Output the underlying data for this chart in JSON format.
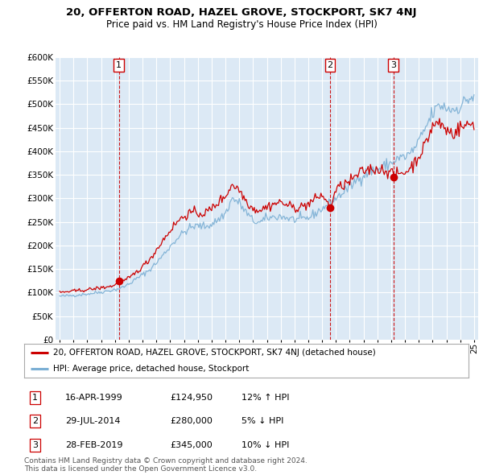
{
  "title1": "20, OFFERTON ROAD, HAZEL GROVE, STOCKPORT, SK7 4NJ",
  "title2": "Price paid vs. HM Land Registry's House Price Index (HPI)",
  "ylabel_ticks": [
    "£0",
    "£50K",
    "£100K",
    "£150K",
    "£200K",
    "£250K",
    "£300K",
    "£350K",
    "£400K",
    "£450K",
    "£500K",
    "£550K",
    "£600K"
  ],
  "ytick_values": [
    0,
    50000,
    100000,
    150000,
    200000,
    250000,
    300000,
    350000,
    400000,
    450000,
    500000,
    550000,
    600000
  ],
  "sale_dates": [
    1999.29,
    2014.57,
    2019.16
  ],
  "sale_prices": [
    124950,
    280000,
    345000
  ],
  "sale_labels": [
    "1",
    "2",
    "3"
  ],
  "legend_house": "20, OFFERTON ROAD, HAZEL GROVE, STOCKPORT, SK7 4NJ (detached house)",
  "legend_hpi": "HPI: Average price, detached house, Stockport",
  "table_rows": [
    [
      "1",
      "16-APR-1999",
      "£124,950",
      "12% ↑ HPI"
    ],
    [
      "2",
      "29-JUL-2014",
      "£280,000",
      "5% ↓ HPI"
    ],
    [
      "3",
      "28-FEB-2019",
      "£345,000",
      "10% ↓ HPI"
    ]
  ],
  "footnote1": "Contains HM Land Registry data © Crown copyright and database right 2024.",
  "footnote2": "This data is licensed under the Open Government Licence v3.0.",
  "line_color_house": "#cc0000",
  "line_color_hpi": "#7bafd4",
  "sale_marker_color": "#cc0000",
  "vline_color": "#cc0000",
  "bg_color": "#ffffff",
  "chart_bg_color": "#dce9f5",
  "grid_color": "#ffffff",
  "xlim": [
    1994.7,
    2025.3
  ],
  "ylim": [
    0,
    600000
  ],
  "figwidth": 6.0,
  "figheight": 5.9
}
